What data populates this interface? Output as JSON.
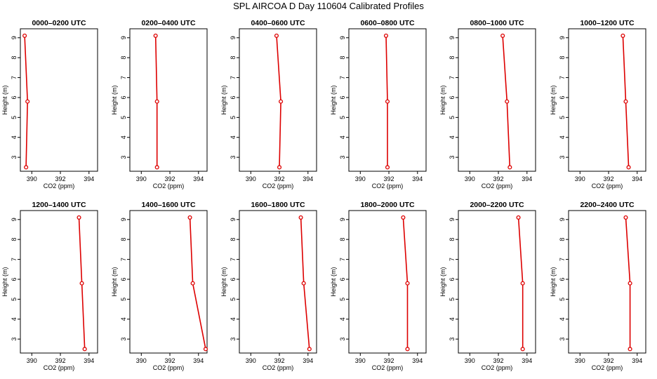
{
  "title": "SPL AIRCOA D  Day 110604  Calibrated Profiles",
  "xlabel": "CO2 (ppm)",
  "ylabel": "Height (m)",
  "colors": {
    "series": "#dd0000",
    "axes": "#000000",
    "background": "#ffffff"
  },
  "chart_data": [
    {
      "type": "line",
      "title": "0000–0200 UTC",
      "x": [
        389.6,
        389.7,
        389.5
      ],
      "y": [
        2.5,
        5.8,
        9.1
      ],
      "xlim": [
        389.2,
        394.6
      ],
      "ylim": [
        2.3,
        9.45
      ],
      "xticks": [
        390,
        392,
        394
      ],
      "yticks": [
        3,
        4,
        5,
        6,
        7,
        8,
        9
      ]
    },
    {
      "type": "line",
      "title": "0200–0400 UTC",
      "x": [
        391.1,
        391.1,
        391.0
      ],
      "y": [
        2.5,
        5.8,
        9.1
      ],
      "xlim": [
        389.2,
        394.6
      ],
      "ylim": [
        2.3,
        9.45
      ],
      "xticks": [
        390,
        392,
        394
      ],
      "yticks": [
        3,
        4,
        5,
        6,
        7,
        8,
        9
      ]
    },
    {
      "type": "line",
      "title": "0400–0600 UTC",
      "x": [
        392.0,
        392.1,
        391.8
      ],
      "y": [
        2.5,
        5.8,
        9.1
      ],
      "xlim": [
        389.2,
        394.6
      ],
      "ylim": [
        2.3,
        9.45
      ],
      "xticks": [
        390,
        392,
        394
      ],
      "yticks": [
        3,
        4,
        5,
        6,
        7,
        8,
        9
      ]
    },
    {
      "type": "line",
      "title": "0600–0800 UTC",
      "x": [
        391.9,
        391.9,
        391.8
      ],
      "y": [
        2.5,
        5.8,
        9.1
      ],
      "xlim": [
        389.2,
        394.6
      ],
      "ylim": [
        2.3,
        9.45
      ],
      "xticks": [
        390,
        392,
        394
      ],
      "yticks": [
        3,
        4,
        5,
        6,
        7,
        8,
        9
      ]
    },
    {
      "type": "line",
      "title": "0800–1000 UTC",
      "x": [
        392.8,
        392.6,
        392.3
      ],
      "y": [
        2.5,
        5.8,
        9.1
      ],
      "xlim": [
        389.2,
        394.6
      ],
      "ylim": [
        2.3,
        9.45
      ],
      "xticks": [
        390,
        392,
        394
      ],
      "yticks": [
        3,
        4,
        5,
        6,
        7,
        8,
        9
      ]
    },
    {
      "type": "line",
      "title": "1000–1200 UTC",
      "x": [
        393.4,
        393.2,
        393.0
      ],
      "y": [
        2.5,
        5.8,
        9.1
      ],
      "xlim": [
        389.2,
        394.6
      ],
      "ylim": [
        2.3,
        9.45
      ],
      "xticks": [
        390,
        392,
        394
      ],
      "yticks": [
        3,
        4,
        5,
        6,
        7,
        8,
        9
      ]
    },
    {
      "type": "line",
      "title": "1200–1400 UTC",
      "x": [
        393.7,
        393.5,
        393.3
      ],
      "y": [
        2.5,
        5.8,
        9.1
      ],
      "xlim": [
        389.2,
        394.6
      ],
      "ylim": [
        2.3,
        9.45
      ],
      "xticks": [
        390,
        392,
        394
      ],
      "yticks": [
        3,
        4,
        5,
        6,
        7,
        8,
        9
      ]
    },
    {
      "type": "line",
      "title": "1400–1600 UTC",
      "x": [
        394.5,
        393.6,
        393.4
      ],
      "y": [
        2.5,
        5.8,
        9.1
      ],
      "xlim": [
        389.2,
        394.6
      ],
      "ylim": [
        2.3,
        9.45
      ],
      "xticks": [
        390,
        392,
        394
      ],
      "yticks": [
        3,
        4,
        5,
        6,
        7,
        8,
        9
      ]
    },
    {
      "type": "line",
      "title": "1600–1800 UTC",
      "x": [
        394.1,
        393.7,
        393.5
      ],
      "y": [
        2.5,
        5.8,
        9.1
      ],
      "xlim": [
        389.2,
        394.6
      ],
      "ylim": [
        2.3,
        9.45
      ],
      "xticks": [
        390,
        392,
        394
      ],
      "yticks": [
        3,
        4,
        5,
        6,
        7,
        8,
        9
      ]
    },
    {
      "type": "line",
      "title": "1800–2000 UTC",
      "x": [
        393.3,
        393.3,
        393.0
      ],
      "y": [
        2.5,
        5.8,
        9.1
      ],
      "xlim": [
        389.2,
        394.6
      ],
      "ylim": [
        2.3,
        9.45
      ],
      "xticks": [
        390,
        392,
        394
      ],
      "yticks": [
        3,
        4,
        5,
        6,
        7,
        8,
        9
      ]
    },
    {
      "type": "line",
      "title": "2000–2200 UTC",
      "x": [
        393.7,
        393.7,
        393.4
      ],
      "y": [
        2.5,
        5.8,
        9.1
      ],
      "xlim": [
        389.2,
        394.6
      ],
      "ylim": [
        2.3,
        9.45
      ],
      "xticks": [
        390,
        392,
        394
      ],
      "yticks": [
        3,
        4,
        5,
        6,
        7,
        8,
        9
      ]
    },
    {
      "type": "line",
      "title": "2200–2400 UTC",
      "x": [
        393.5,
        393.5,
        393.2
      ],
      "y": [
        2.5,
        5.8,
        9.1
      ],
      "xlim": [
        389.2,
        394.6
      ],
      "ylim": [
        2.3,
        9.45
      ],
      "xticks": [
        390,
        392,
        394
      ],
      "yticks": [
        3,
        4,
        5,
        6,
        7,
        8,
        9
      ]
    }
  ]
}
